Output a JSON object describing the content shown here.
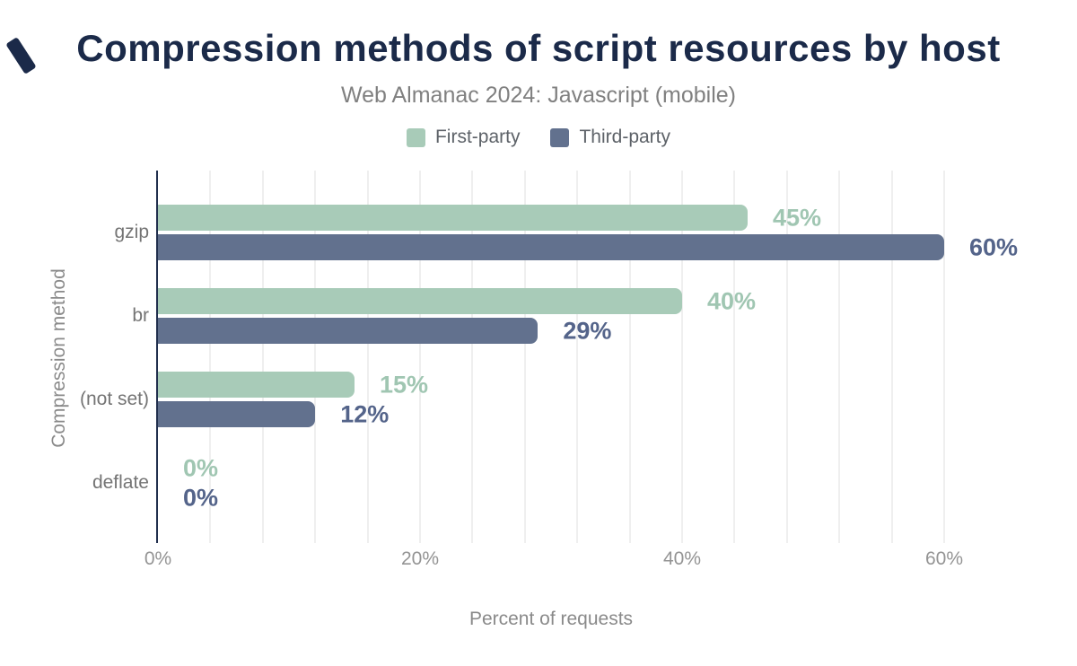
{
  "chart_data": {
    "type": "bar",
    "orientation": "horizontal",
    "title": "Compression methods of script resources by host",
    "subtitle": "Web Almanac 2024: Javascript (mobile)",
    "xlabel": "Percent of requests",
    "ylabel": "Compression method",
    "categories": [
      "gzip",
      "br",
      "(not set)",
      "deflate"
    ],
    "series": [
      {
        "name": "First-party",
        "color": "#a8cbb8",
        "label_color": "#a0c6b2",
        "values": [
          45,
          40,
          15,
          0
        ],
        "labels": [
          "45%",
          "40%",
          "15%",
          "0%"
        ]
      },
      {
        "name": "Third-party",
        "color": "#62718e",
        "label_color": "#54648a",
        "values": [
          60,
          29,
          12,
          0
        ],
        "labels": [
          "60%",
          "29%",
          "12%",
          "0%"
        ]
      }
    ],
    "xlim": [
      0,
      60
    ],
    "xticks": [
      {
        "value": 0,
        "label": "0%"
      },
      {
        "value": 20,
        "label": "20%"
      },
      {
        "value": 40,
        "label": "40%"
      },
      {
        "value": 60,
        "label": "60%"
      }
    ],
    "grid_step": 4,
    "grid_on": true,
    "legend_position": "top",
    "brand_color": "#1b2a49"
  }
}
